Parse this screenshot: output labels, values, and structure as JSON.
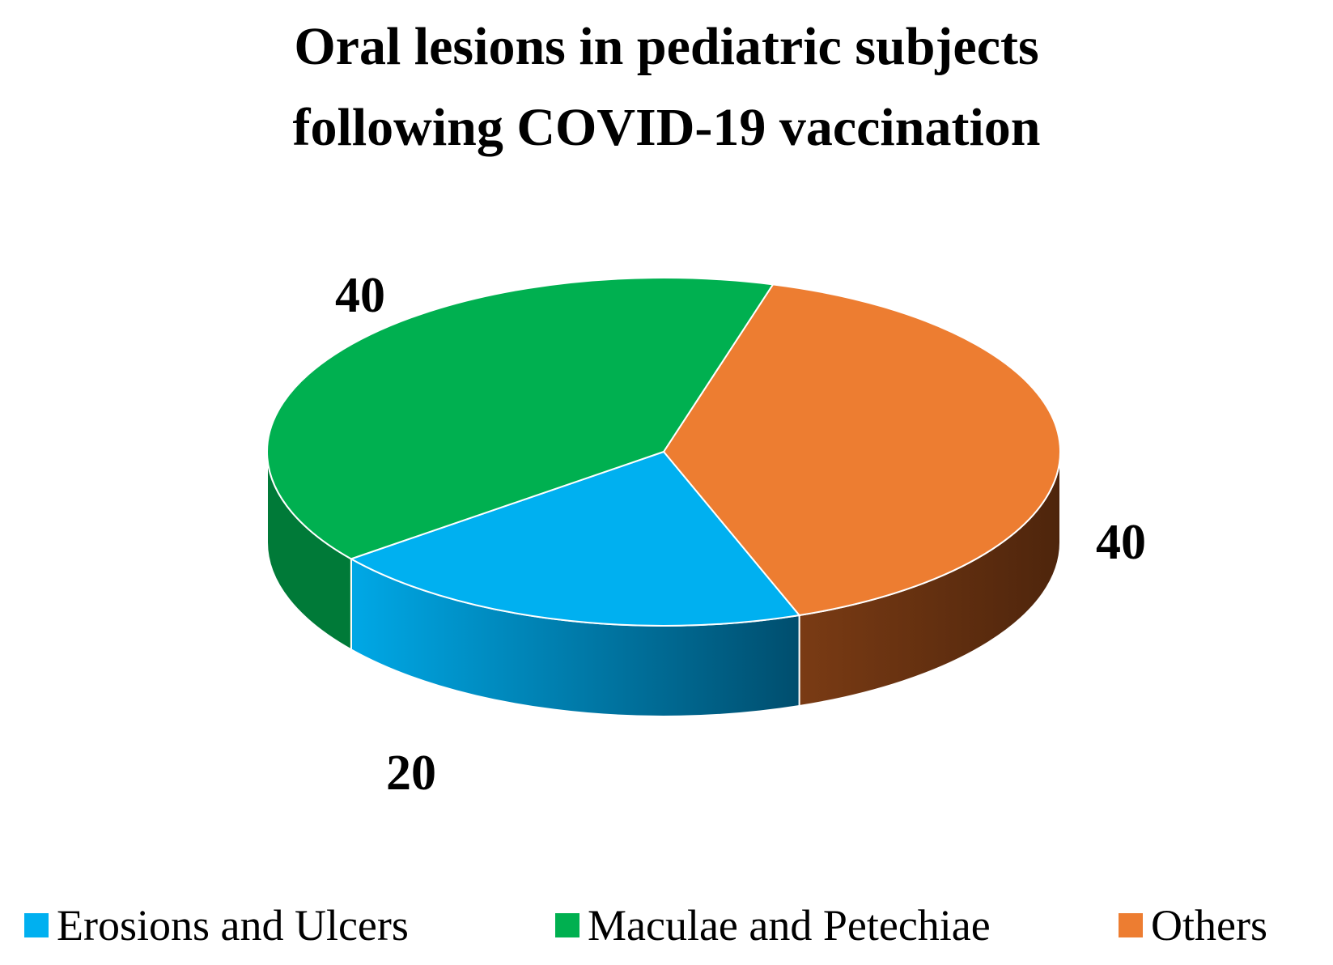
{
  "chart_data": {
    "type": "pie",
    "style": "3d",
    "title_lines": [
      "Oral lesions in pediatric subjects",
      "following COVID-19 vaccination"
    ],
    "slices": [
      {
        "name": "Erosions and Ulcers",
        "value": 20,
        "label": "20",
        "color": "#00B0F0",
        "side_color": "#0077A8"
      },
      {
        "name": "Maculae and Petechiae",
        "value": 40,
        "label": "40",
        "color": "#00B050",
        "side_color": "#007A38"
      },
      {
        "name": "Others",
        "value": 40,
        "label": "40",
        "color": "#ED7D31",
        "side_color": "#6B3312"
      }
    ],
    "legend_position": "bottom"
  }
}
